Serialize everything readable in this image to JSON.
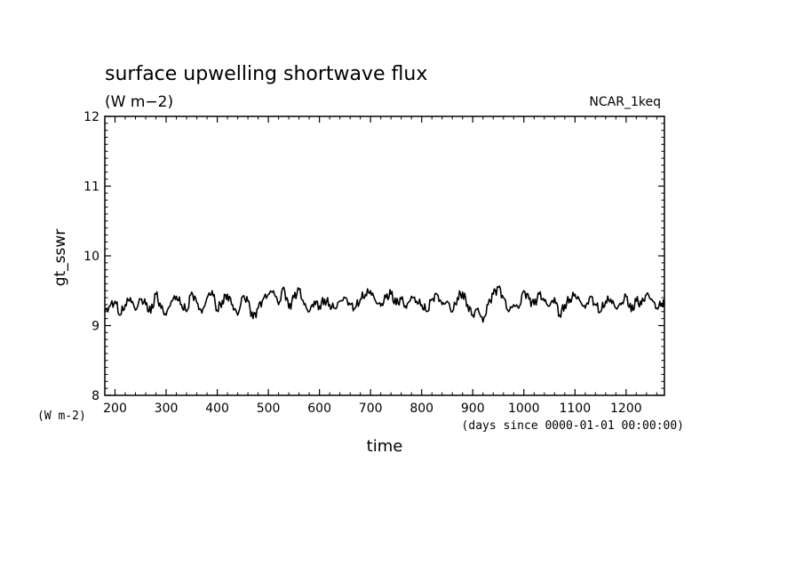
{
  "chart_data": {
    "type": "line",
    "title": "surface upwelling shortwave flux",
    "subtitle": "(W m−2)",
    "experiment": "NCAR_1keq",
    "xlabel": "time",
    "xunits": "(days since 0000-01-01 00:00:00)",
    "ylabel": "gt_sswr",
    "yunits": "(W m-2)",
    "xlim": [
      180,
      1275
    ],
    "ylim": [
      8,
      12
    ],
    "xticks": [
      200,
      300,
      400,
      500,
      600,
      700,
      800,
      900,
      1000,
      1100,
      1200
    ],
    "yticks": [
      8,
      9,
      10,
      11,
      12
    ],
    "grid": false,
    "series": [
      {
        "x": [
          180,
          190,
          200,
          210,
          220,
          230,
          240,
          250,
          260,
          270,
          280,
          290,
          300,
          310,
          320,
          330,
          340,
          350,
          360,
          370,
          380,
          390,
          400,
          410,
          420,
          430,
          440,
          450,
          460,
          470,
          480,
          490,
          500,
          510,
          520,
          530,
          540,
          550,
          560,
          570,
          580,
          590,
          600,
          610,
          620,
          630,
          640,
          650,
          660,
          670,
          680,
          690,
          700,
          710,
          720,
          730,
          740,
          750,
          760,
          770,
          780,
          790,
          800,
          810,
          820,
          830,
          840,
          850,
          860,
          870,
          880,
          890,
          900,
          910,
          920,
          930,
          940,
          950,
          960,
          970,
          980,
          990,
          1000,
          1010,
          1020,
          1030,
          1040,
          1050,
          1060,
          1070,
          1080,
          1090,
          1100,
          1110,
          1120,
          1130,
          1140,
          1150,
          1160,
          1170,
          1180,
          1190,
          1200,
          1210,
          1220,
          1230,
          1240,
          1250,
          1260,
          1270,
          1275
        ],
        "y": [
          9.2,
          9.28,
          9.35,
          9.15,
          9.3,
          9.4,
          9.22,
          9.38,
          9.3,
          9.18,
          9.45,
          9.25,
          9.15,
          9.35,
          9.42,
          9.3,
          9.2,
          9.48,
          9.33,
          9.18,
          9.4,
          9.5,
          9.22,
          9.36,
          9.45,
          9.3,
          9.15,
          9.42,
          9.35,
          9.1,
          9.25,
          9.38,
          9.45,
          9.5,
          9.3,
          9.55,
          9.25,
          9.4,
          9.52,
          9.3,
          9.2,
          9.35,
          9.28,
          9.38,
          9.3,
          9.25,
          9.35,
          9.4,
          9.3,
          9.25,
          9.38,
          9.45,
          9.5,
          9.35,
          9.28,
          9.4,
          9.45,
          9.3,
          9.38,
          9.25,
          9.42,
          9.35,
          9.3,
          9.2,
          9.38,
          9.45,
          9.3,
          9.35,
          9.2,
          9.4,
          9.48,
          9.3,
          9.15,
          9.25,
          9.05,
          9.3,
          9.45,
          9.55,
          9.4,
          9.2,
          9.3,
          9.25,
          9.5,
          9.38,
          9.3,
          9.45,
          9.35,
          9.28,
          9.4,
          9.15,
          9.3,
          9.38,
          9.45,
          9.35,
          9.25,
          9.42,
          9.3,
          9.2,
          9.35,
          9.38,
          9.25,
          9.3,
          9.42,
          9.2,
          9.35,
          9.3,
          9.45,
          9.38,
          9.25,
          9.32,
          9.28
        ]
      }
    ]
  }
}
